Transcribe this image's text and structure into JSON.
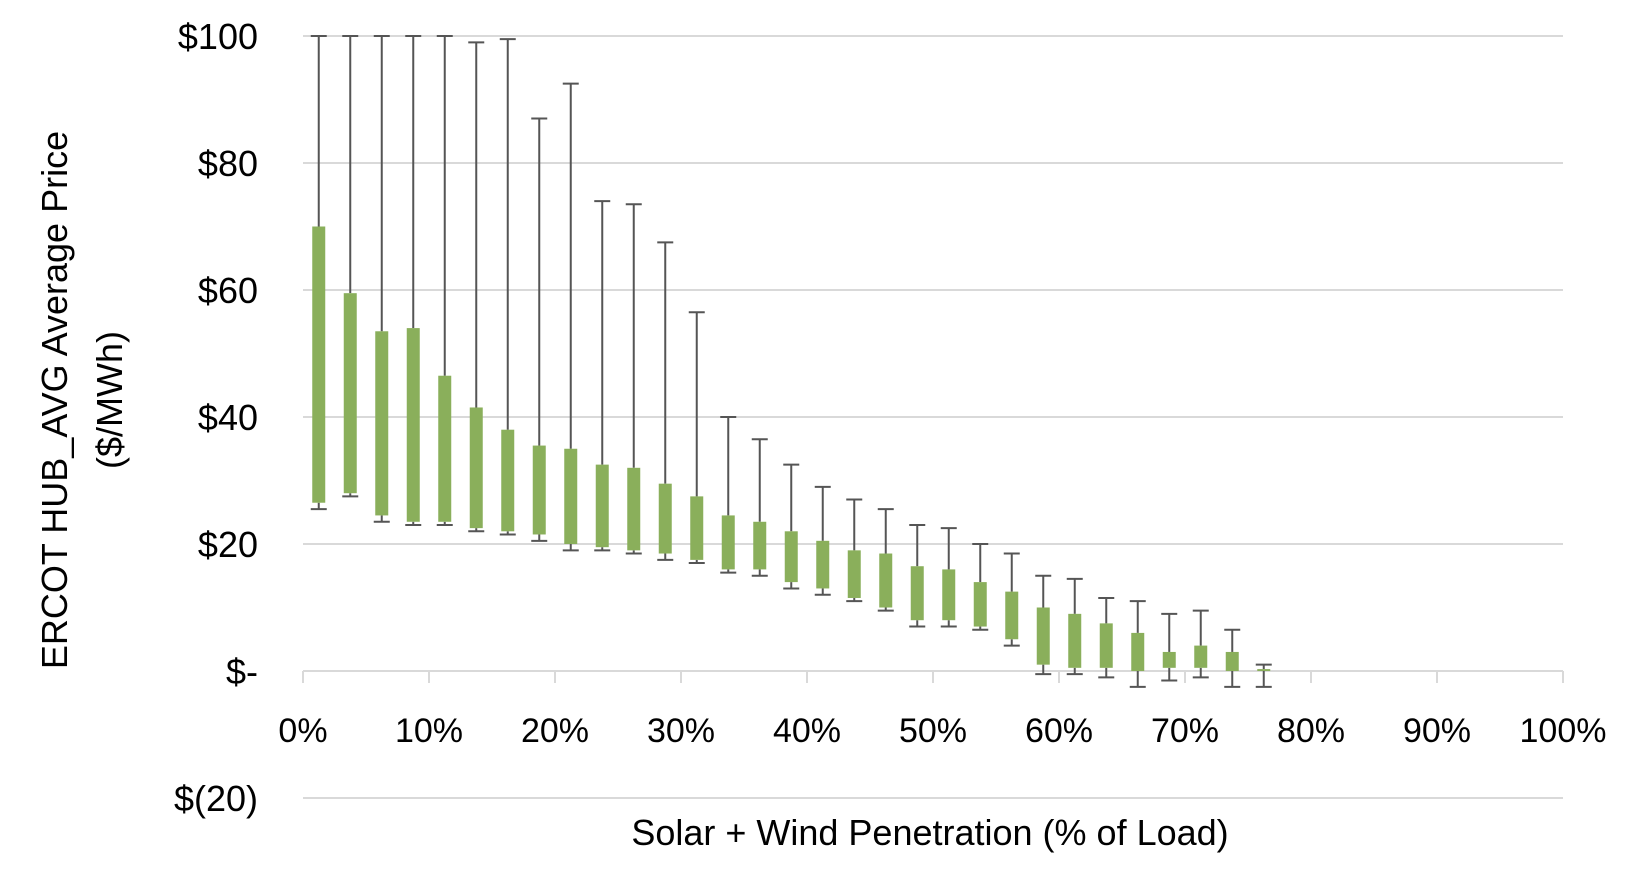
{
  "chart_data": {
    "type": "box",
    "xlabel": "Solar + Wind Penetration (% of Load)",
    "ylabel": "ERCOT HUB_AVG Average Price",
    "ylabel2": "($/MWh)",
    "ylim": [
      -20,
      100
    ],
    "xlim": [
      0,
      100
    ],
    "y_ticks": [
      {
        "value": 100,
        "label": "$100"
      },
      {
        "value": 80,
        "label": "$80"
      },
      {
        "value": 60,
        "label": "$60"
      },
      {
        "value": 40,
        "label": "$40"
      },
      {
        "value": 20,
        "label": "$20"
      },
      {
        "value": 0,
        "label": "$-"
      },
      {
        "value": -20,
        "label": "$(20)"
      }
    ],
    "x_ticks": [
      {
        "value": 0,
        "label": "0%"
      },
      {
        "value": 10,
        "label": "10%"
      },
      {
        "value": 20,
        "label": "20%"
      },
      {
        "value": 30,
        "label": "30%"
      },
      {
        "value": 40,
        "label": "40%"
      },
      {
        "value": 50,
        "label": "50%"
      },
      {
        "value": 60,
        "label": "60%"
      },
      {
        "value": 70,
        "label": "70%"
      },
      {
        "value": 80,
        "label": "80%"
      },
      {
        "value": 90,
        "label": "90%"
      },
      {
        "value": 100,
        "label": "100%"
      }
    ],
    "colors": {
      "box": "#8aaf5b",
      "whisker": "#555555",
      "grid": "#d9d9d9"
    },
    "boxes": [
      {
        "x": 1.25,
        "low": 25.5,
        "q1": 26.5,
        "q3": 70.0,
        "high": 100
      },
      {
        "x": 3.75,
        "low": 27.5,
        "q1": 28.0,
        "q3": 59.5,
        "high": 100
      },
      {
        "x": 6.25,
        "low": 23.5,
        "q1": 24.5,
        "q3": 53.5,
        "high": 100
      },
      {
        "x": 8.75,
        "low": 23.0,
        "q1": 23.5,
        "q3": 54.0,
        "high": 100
      },
      {
        "x": 11.25,
        "low": 23.0,
        "q1": 23.5,
        "q3": 46.5,
        "high": 100
      },
      {
        "x": 13.75,
        "low": 22.0,
        "q1": 22.5,
        "q3": 41.5,
        "high": 99.0
      },
      {
        "x": 16.25,
        "low": 21.5,
        "q1": 22.0,
        "q3": 38.0,
        "high": 99.5
      },
      {
        "x": 18.75,
        "low": 20.5,
        "q1": 21.5,
        "q3": 35.5,
        "high": 87.0
      },
      {
        "x": 21.25,
        "low": 19.0,
        "q1": 20.0,
        "q3": 35.0,
        "high": 92.5
      },
      {
        "x": 23.75,
        "low": 19.0,
        "q1": 19.5,
        "q3": 32.5,
        "high": 74.0
      },
      {
        "x": 26.25,
        "low": 18.5,
        "q1": 19.0,
        "q3": 32.0,
        "high": 73.5
      },
      {
        "x": 28.75,
        "low": 17.5,
        "q1": 18.5,
        "q3": 29.5,
        "high": 67.5
      },
      {
        "x": 31.25,
        "low": 17.0,
        "q1": 17.5,
        "q3": 27.5,
        "high": 56.5
      },
      {
        "x": 33.75,
        "low": 15.5,
        "q1": 16.0,
        "q3": 24.5,
        "high": 40.0
      },
      {
        "x": 36.25,
        "low": 15.0,
        "q1": 16.0,
        "q3": 23.5,
        "high": 36.5
      },
      {
        "x": 38.75,
        "low": 13.0,
        "q1": 14.0,
        "q3": 22.0,
        "high": 32.5
      },
      {
        "x": 41.25,
        "low": 12.0,
        "q1": 13.0,
        "q3": 20.5,
        "high": 29.0
      },
      {
        "x": 43.75,
        "low": 11.0,
        "q1": 11.5,
        "q3": 19.0,
        "high": 27.0
      },
      {
        "x": 46.25,
        "low": 9.5,
        "q1": 10.0,
        "q3": 18.5,
        "high": 25.5
      },
      {
        "x": 48.75,
        "low": 7.0,
        "q1": 8.0,
        "q3": 16.5,
        "high": 23.0
      },
      {
        "x": 51.25,
        "low": 7.0,
        "q1": 8.0,
        "q3": 16.0,
        "high": 22.5
      },
      {
        "x": 53.75,
        "low": 6.5,
        "q1": 7.0,
        "q3": 14.0,
        "high": 20.0
      },
      {
        "x": 56.25,
        "low": 4.0,
        "q1": 5.0,
        "q3": 12.5,
        "high": 18.5
      },
      {
        "x": 58.75,
        "low": -0.5,
        "q1": 1.0,
        "q3": 10.0,
        "high": 15.0
      },
      {
        "x": 61.25,
        "low": -0.5,
        "q1": 0.5,
        "q3": 9.0,
        "high": 14.5
      },
      {
        "x": 63.75,
        "low": -1.0,
        "q1": 0.5,
        "q3": 7.5,
        "high": 11.5
      },
      {
        "x": 66.25,
        "low": -2.5,
        "q1": 0.0,
        "q3": 6.0,
        "high": 11.0
      },
      {
        "x": 68.75,
        "low": -1.5,
        "q1": 0.5,
        "q3": 3.0,
        "high": 9.0
      },
      {
        "x": 71.25,
        "low": -1.0,
        "q1": 0.5,
        "q3": 4.0,
        "high": 9.5
      },
      {
        "x": 73.75,
        "low": -2.5,
        "q1": 0.0,
        "q3": 3.0,
        "high": 6.5
      },
      {
        "x": 76.25,
        "low": -2.5,
        "q1": 0.0,
        "q3": 0.3,
        "high": 1.0
      }
    ]
  }
}
